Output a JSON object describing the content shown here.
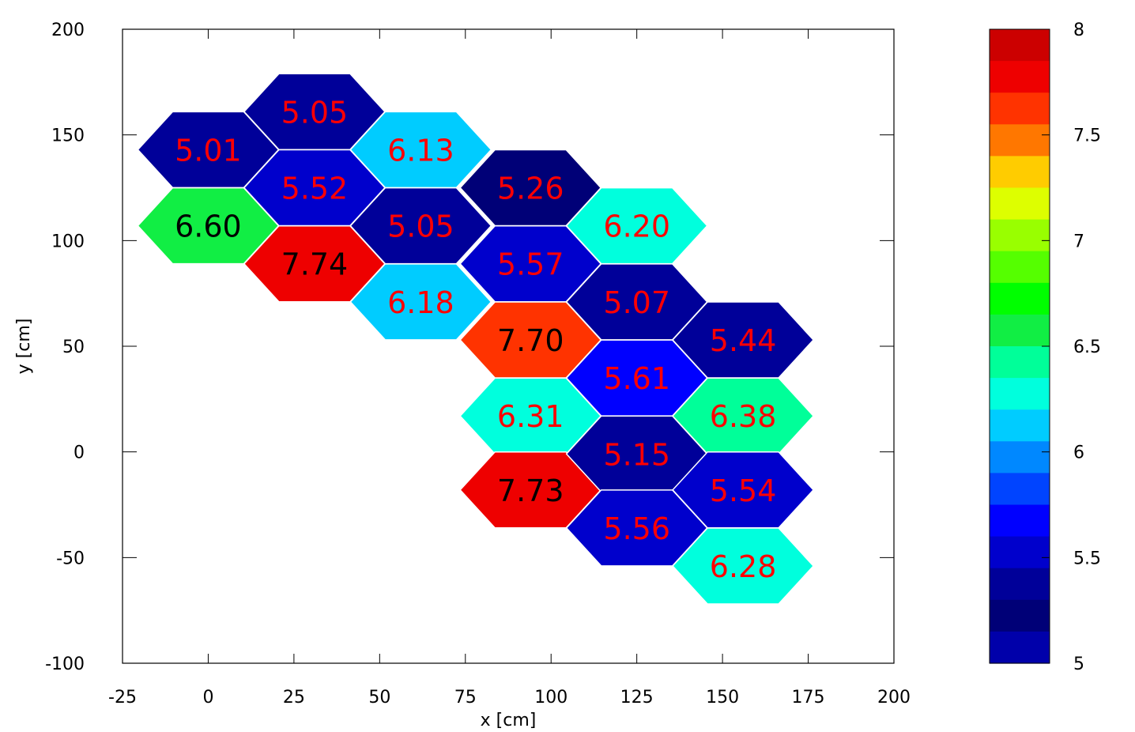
{
  "chart_data": {
    "type": "heatmap",
    "title": "",
    "xlabel": "x [cm]",
    "ylabel": "y [cm]",
    "xlim": [
      -25,
      200
    ],
    "ylim": [
      -100,
      200
    ],
    "xticks": [
      "-25",
      "0",
      "25",
      "50",
      "75",
      "100",
      "125",
      "150",
      "175",
      "200"
    ],
    "yticks": [
      "200",
      "150",
      "100",
      "50",
      "0",
      "-50",
      "-100"
    ],
    "grid": false,
    "legend": "colorbar-right",
    "cell_shape": "hexagon",
    "colorbar": {
      "range": [
        5,
        8
      ],
      "tick_labels": [
        "8",
        "7.5",
        "7",
        "6.5",
        "6",
        "5.5",
        "5"
      ],
      "colors_top_to_bottom": [
        "#cc0000",
        "#ee0000",
        "#ff3300",
        "#ff7700",
        "#ffcc00",
        "#ddff00",
        "#99ff00",
        "#55ff00",
        "#00ff00",
        "#11ee44",
        "#00ff99",
        "#00ffdd",
        "#00ccff",
        "#0088ff",
        "#0044ff",
        "#0000ff",
        "#0000cc",
        "#000099",
        "#000077",
        "#0000aa"
      ]
    },
    "points": [
      {
        "x": 0,
        "y": 143,
        "value": "5.01",
        "color": "#000099",
        "label_color": "#ff0000"
      },
      {
        "x": 31,
        "y": 161,
        "value": "5.05",
        "color": "#000099",
        "label_color": "#ff0000"
      },
      {
        "x": 31,
        "y": 125,
        "value": "5.52",
        "color": "#0000cc",
        "label_color": "#ff0000"
      },
      {
        "x": 0,
        "y": 107,
        "value": "6.60",
        "color": "#11ee44",
        "label_color": "#000000"
      },
      {
        "x": 31,
        "y": 89,
        "value": "7.74",
        "color": "#ee0000",
        "label_color": "#000000"
      },
      {
        "x": 62,
        "y": 143,
        "value": "6.13",
        "color": "#00ccff",
        "label_color": "#ff0000"
      },
      {
        "x": 62,
        "y": 107,
        "value": "5.05",
        "color": "#000099",
        "label_color": "#ff0000"
      },
      {
        "x": 62,
        "y": 71,
        "value": "6.18",
        "color": "#00ccff",
        "label_color": "#ff0000"
      },
      {
        "x": 94,
        "y": 125,
        "value": "5.26",
        "color": "#000077",
        "label_color": "#ff0000"
      },
      {
        "x": 94,
        "y": 89,
        "value": "5.57",
        "color": "#0000cc",
        "label_color": "#ff0000"
      },
      {
        "x": 94,
        "y": 53,
        "value": "7.70",
        "color": "#ff3300",
        "label_color": "#000000"
      },
      {
        "x": 94,
        "y": 17,
        "value": "6.31",
        "color": "#00ffdd",
        "label_color": "#ff0000"
      },
      {
        "x": 94,
        "y": -18,
        "value": "7.73",
        "color": "#ee0000",
        "label_color": "#000000"
      },
      {
        "x": 125,
        "y": 107,
        "value": "6.20",
        "color": "#00ffdd",
        "label_color": "#ff0000"
      },
      {
        "x": 125,
        "y": 71,
        "value": "5.07",
        "color": "#000099",
        "label_color": "#ff0000"
      },
      {
        "x": 125,
        "y": 35,
        "value": "5.61",
        "color": "#0000ff",
        "label_color": "#ff0000"
      },
      {
        "x": 125,
        "y": -1,
        "value": "5.15",
        "color": "#000099",
        "label_color": "#ff0000"
      },
      {
        "x": 125,
        "y": -36,
        "value": "5.56",
        "color": "#0000cc",
        "label_color": "#ff0000"
      },
      {
        "x": 156,
        "y": 53,
        "value": "5.44",
        "color": "#000099",
        "label_color": "#ff0000"
      },
      {
        "x": 156,
        "y": 17,
        "value": "6.38",
        "color": "#00ff99",
        "label_color": "#ff0000"
      },
      {
        "x": 156,
        "y": -18,
        "value": "5.54",
        "color": "#0000cc",
        "label_color": "#ff0000"
      },
      {
        "x": 156,
        "y": -54,
        "value": "6.28",
        "color": "#00ffdd",
        "label_color": "#ff0000"
      }
    ]
  }
}
